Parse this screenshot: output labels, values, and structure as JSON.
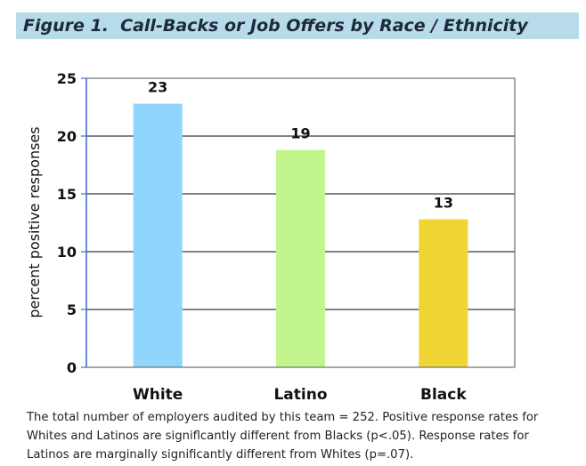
{
  "title": "Figure 1.  Call-Backs or Job Offers by Race / Ethnicity",
  "note": "The total number of employers audited by this team = 252. Positive response rates for Whites and Latinos are signiflcantly different from Blacks (p<.05). Response rates for Latinos are marginally significantly different from Whites (p=.07).",
  "chart_data": {
    "type": "bar",
    "categories": [
      "White",
      "Latino",
      "Black"
    ],
    "values": [
      23,
      19,
      13
    ],
    "plotted_values": [
      22.8,
      18.8,
      12.8
    ],
    "data_labels": [
      "23",
      "19",
      "13"
    ],
    "title": "Figure 1.  Call-Backs or Job Offers by Race / Ethnicity",
    "xlabel": "",
    "ylabel": "percent positive responses",
    "ylim": [
      0,
      25
    ],
    "yticks": [
      "0",
      "5",
      "10",
      "15",
      "20",
      "25"
    ],
    "grid": true,
    "legend": "none",
    "colors": [
      "#90d5fb",
      "#c2f58e",
      "#f0d535"
    ]
  }
}
